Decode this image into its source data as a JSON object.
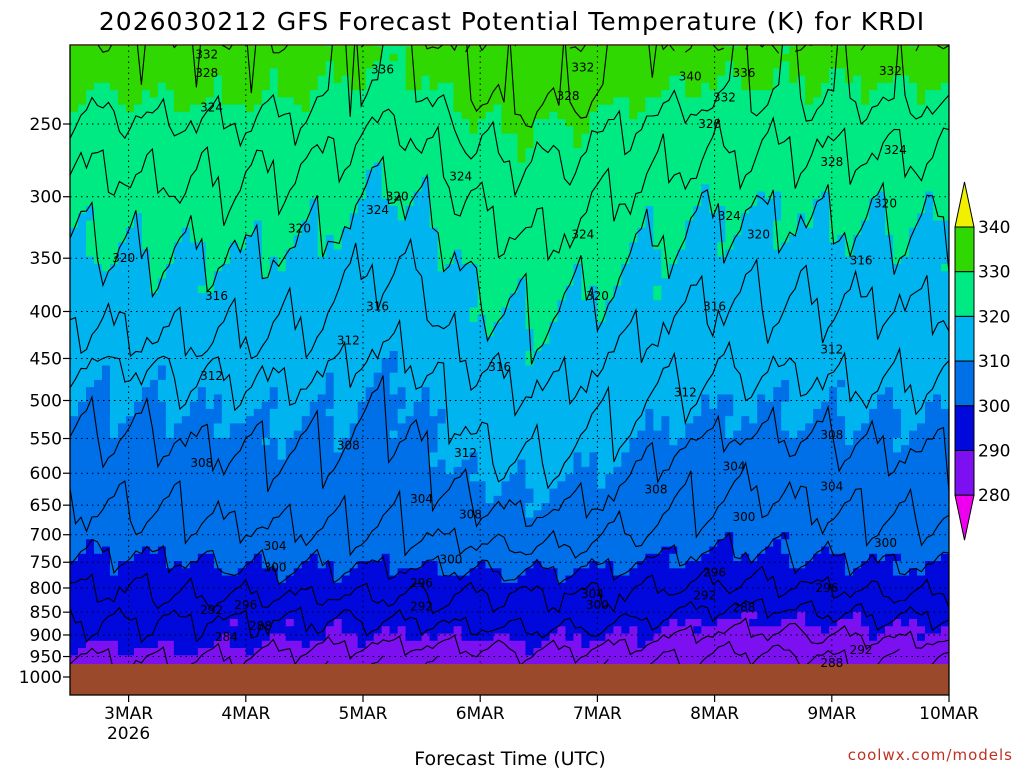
{
  "chart_data": {
    "type": "heatmap",
    "title": "2026030212 GFS Forecast Potential Temperature (K) for KRDI",
    "xlabel": "Forecast Time (UTC)",
    "ylabel": "",
    "y_scale": "log",
    "y_inverted": true,
    "ylim": [
      1000,
      200
    ],
    "y_ticks": [
      250,
      300,
      350,
      400,
      450,
      500,
      550,
      600,
      650,
      700,
      750,
      800,
      850,
      900,
      950,
      1000
    ],
    "xlim": [
      "2026-03-02T12",
      "2026-03-10T00"
    ],
    "x_ticks": [
      {
        "time": "2026-03-03T00",
        "label": "3MAR",
        "sublabel": "2026"
      },
      {
        "time": "2026-03-04T00",
        "label": "4MAR",
        "sublabel": ""
      },
      {
        "time": "2026-03-05T00",
        "label": "5MAR",
        "sublabel": ""
      },
      {
        "time": "2026-03-06T00",
        "label": "6MAR",
        "sublabel": ""
      },
      {
        "time": "2026-03-07T00",
        "label": "7MAR",
        "sublabel": ""
      },
      {
        "time": "2026-03-08T00",
        "label": "8MAR",
        "sublabel": ""
      },
      {
        "time": "2026-03-09T00",
        "label": "9MAR",
        "sublabel": ""
      },
      {
        "time": "2026-03-10T00",
        "label": "10MAR",
        "sublabel": ""
      }
    ],
    "grid": true,
    "legend_position": "right",
    "colorbar": {
      "labels": [
        "340",
        "330",
        "320",
        "310",
        "300",
        "290",
        "280"
      ],
      "bins": [
        {
          "from": 340,
          "to": 350,
          "color": "#f0f000"
        },
        {
          "from": 330,
          "to": 340,
          "color": "#2ed800"
        },
        {
          "from": 320,
          "to": 330,
          "color": "#00ea84"
        },
        {
          "from": 310,
          "to": 320,
          "color": "#00b4f0"
        },
        {
          "from": 300,
          "to": 310,
          "color": "#0070e8"
        },
        {
          "from": 290,
          "to": 300,
          "color": "#0008dc"
        },
        {
          "from": 280,
          "to": 290,
          "color": "#7c10f0"
        },
        {
          "from": 270,
          "to": 280,
          "color": "#ee00ee"
        }
      ]
    },
    "ground_color": "#9a4a2a",
    "contour_interval": 4,
    "contour_labels": [
      {
        "value": "332",
        "time": "2026-03-03T16",
        "p": 210
      },
      {
        "value": "328",
        "time": "2026-03-03T16",
        "p": 220
      },
      {
        "value": "324",
        "time": "2026-03-03T17",
        "p": 240
      },
      {
        "value": "336",
        "time": "2026-03-05T04",
        "p": 218
      },
      {
        "value": "332",
        "time": "2026-03-06T21",
        "p": 217
      },
      {
        "value": "328",
        "time": "2026-03-06T18",
        "p": 233
      },
      {
        "value": "340",
        "time": "2026-03-07T19",
        "p": 222
      },
      {
        "value": "336",
        "time": "2026-03-08T06",
        "p": 220
      },
      {
        "value": "332",
        "time": "2026-03-08T02",
        "p": 234
      },
      {
        "value": "332",
        "time": "2026-03-09T12",
        "p": 219
      },
      {
        "value": "328",
        "time": "2026-03-07T23",
        "p": 250
      },
      {
        "value": "328",
        "time": "2026-03-09T00",
        "p": 275
      },
      {
        "value": "324",
        "time": "2026-03-09T13",
        "p": 267
      },
      {
        "value": "324",
        "time": "2026-03-05T20",
        "p": 285
      },
      {
        "value": "320",
        "time": "2026-03-05T07",
        "p": 300
      },
      {
        "value": "324",
        "time": "2026-03-05T03",
        "p": 310
      },
      {
        "value": "320",
        "time": "2026-03-04T11",
        "p": 325
      },
      {
        "value": "324",
        "time": "2026-03-06T21",
        "p": 330
      },
      {
        "value": "324",
        "time": "2026-03-08T03",
        "p": 315
      },
      {
        "value": "320",
        "time": "2026-03-08T09",
        "p": 330
      },
      {
        "value": "320",
        "time": "2026-03-09T11",
        "p": 305
      },
      {
        "value": "320",
        "time": "2026-03-02T23",
        "p": 350
      },
      {
        "value": "316",
        "time": "2026-03-03T18",
        "p": 385
      },
      {
        "value": "316",
        "time": "2026-03-05T03",
        "p": 395
      },
      {
        "value": "320",
        "time": "2026-03-07T00",
        "p": 385
      },
      {
        "value": "316",
        "time": "2026-03-08T00",
        "p": 395
      },
      {
        "value": "316",
        "time": "2026-03-09T06",
        "p": 352
      },
      {
        "value": "312",
        "time": "2026-03-04T21",
        "p": 430
      },
      {
        "value": "312",
        "time": "2026-03-03T17",
        "p": 470
      },
      {
        "value": "316",
        "time": "2026-03-06T04",
        "p": 460
      },
      {
        "value": "312",
        "time": "2026-03-07T18",
        "p": 490
      },
      {
        "value": "312",
        "time": "2026-03-09T00",
        "p": 440
      },
      {
        "value": "308",
        "time": "2026-03-04T21",
        "p": 560
      },
      {
        "value": "312",
        "time": "2026-03-05T21",
        "p": 570
      },
      {
        "value": "308",
        "time": "2026-03-09T00",
        "p": 545
      },
      {
        "value": "308",
        "time": "2026-03-03T15",
        "p": 585
      },
      {
        "value": "304",
        "time": "2026-03-08T04",
        "p": 590
      },
      {
        "value": "308",
        "time": "2026-03-07T12",
        "p": 625
      },
      {
        "value": "304",
        "time": "2026-03-09T00",
        "p": 620
      },
      {
        "value": "304",
        "time": "2026-03-05T12",
        "p": 640
      },
      {
        "value": "308",
        "time": "2026-03-05T22",
        "p": 665
      },
      {
        "value": "300",
        "time": "2026-03-08T06",
        "p": 670
      },
      {
        "value": "304",
        "time": "2026-03-04T06",
        "p": 720
      },
      {
        "value": "300",
        "time": "2026-03-09T11",
        "p": 715
      },
      {
        "value": "300",
        "time": "2026-03-04T06",
        "p": 760
      },
      {
        "value": "300",
        "time": "2026-03-05T18",
        "p": 745
      },
      {
        "value": "296",
        "time": "2026-03-05T12",
        "p": 790
      },
      {
        "value": "296",
        "time": "2026-03-08T00",
        "p": 770
      },
      {
        "value": "296",
        "time": "2026-03-08T23",
        "p": 800
      },
      {
        "value": "304",
        "time": "2026-03-06T23",
        "p": 812
      },
      {
        "value": "300",
        "time": "2026-03-07T00",
        "p": 835
      },
      {
        "value": "292",
        "time": "2026-03-07T22",
        "p": 815
      },
      {
        "value": "288",
        "time": "2026-03-08T06",
        "p": 840
      },
      {
        "value": "292",
        "time": "2026-03-05T12",
        "p": 838
      },
      {
        "value": "292",
        "time": "2026-03-03T17",
        "p": 845
      },
      {
        "value": "296",
        "time": "2026-03-04T00",
        "p": 835
      },
      {
        "value": "288",
        "time": "2026-03-04T03",
        "p": 880
      },
      {
        "value": "284",
        "time": "2026-03-03T20",
        "p": 905
      },
      {
        "value": "292",
        "time": "2026-03-09T06",
        "p": 935
      },
      {
        "value": "288",
        "time": "2026-03-09T00",
        "p": 965
      }
    ]
  },
  "credit": "coolwx.com/models"
}
